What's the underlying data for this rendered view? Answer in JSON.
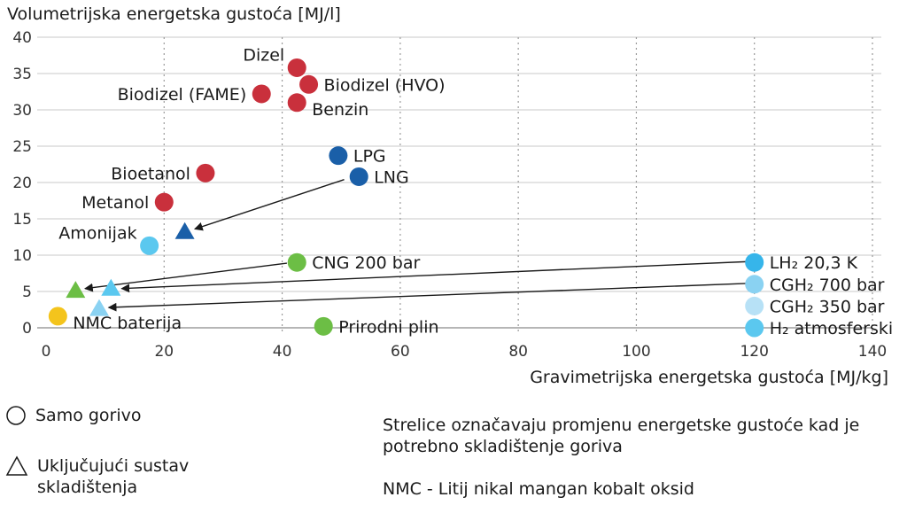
{
  "chart_data": {
    "type": "scatter",
    "title": "",
    "ylabel": "Volumetrijska energetska gustoća [MJ/l]",
    "xlabel": "Gravimetrijska energetska gustoća [MJ/kg]",
    "xlim": [
      0,
      140
    ],
    "ylim": [
      0,
      40
    ],
    "x_ticks": [
      0,
      20,
      40,
      60,
      80,
      100,
      120,
      140
    ],
    "y_ticks": [
      0,
      5,
      10,
      15,
      20,
      25,
      30,
      35,
      40
    ],
    "grid": true,
    "points": [
      {
        "label": "Dizel",
        "x": 42.5,
        "y": 35.8,
        "shape": "circle",
        "color": "#c9303c",
        "label_pos": "left-up"
      },
      {
        "label": "Biodizel (HVO)",
        "x": 44.5,
        "y": 33.5,
        "shape": "circle",
        "color": "#c9303c",
        "label_pos": "right"
      },
      {
        "label": "Biodizel (FAME)",
        "x": 36.5,
        "y": 32.2,
        "shape": "circle",
        "color": "#c9303c",
        "label_pos": "left"
      },
      {
        "label": "Benzin",
        "x": 42.5,
        "y": 31.0,
        "shape": "circle",
        "color": "#c9303c",
        "label_pos": "right-down"
      },
      {
        "label": "LPG",
        "x": 49.5,
        "y": 23.7,
        "shape": "circle",
        "color": "#1a5fa8",
        "label_pos": "right"
      },
      {
        "label": "Bioetanol",
        "x": 27.0,
        "y": 21.3,
        "shape": "circle",
        "color": "#c9303c",
        "label_pos": "left"
      },
      {
        "label": "LNG",
        "x": 53.0,
        "y": 20.8,
        "shape": "circle",
        "color": "#1a5fa8",
        "label_pos": "right"
      },
      {
        "label": "Metanol",
        "x": 20.0,
        "y": 17.3,
        "shape": "circle",
        "color": "#c9303c",
        "label_pos": "left"
      },
      {
        "label": "",
        "x": 23.5,
        "y": 13.2,
        "shape": "triangle",
        "color": "#1a5fa8",
        "label_pos": "none"
      },
      {
        "label": "Amonijak",
        "x": 17.5,
        "y": 11.3,
        "shape": "circle",
        "color": "#5bc8ef",
        "label_pos": "left-up"
      },
      {
        "label": "CNG 200 bar",
        "x": 42.5,
        "y": 9.0,
        "shape": "circle",
        "color": "#6cbe45",
        "label_pos": "right"
      },
      {
        "label": "LH₂ 20,3 K",
        "x": 120.0,
        "y": 9.0,
        "shape": "circle",
        "color": "#36b5ea",
        "label_pos": "right"
      },
      {
        "label": "CGH₂ 700 bar",
        "x": 120.0,
        "y": 6.0,
        "shape": "circle",
        "color": "#8ad2f2",
        "label_pos": "right"
      },
      {
        "label": "",
        "x": 5.0,
        "y": 5.1,
        "shape": "triangle",
        "color": "#6cbe45",
        "label_pos": "none"
      },
      {
        "label": "",
        "x": 11.0,
        "y": 5.4,
        "shape": "triangle",
        "color": "#5bc8ef",
        "label_pos": "none"
      },
      {
        "label": "CGH₂ 350 bar",
        "x": 120.0,
        "y": 3.0,
        "shape": "circle",
        "color": "#b7e1f6",
        "label_pos": "right"
      },
      {
        "label": "",
        "x": 9.0,
        "y": 2.6,
        "shape": "triangle",
        "color": "#8ad2f2",
        "label_pos": "none"
      },
      {
        "label": "NMC baterija",
        "x": 2.0,
        "y": 1.6,
        "shape": "circle",
        "color": "#f4c41c",
        "label_pos": "right-down"
      },
      {
        "label": "Prirodni plin",
        "x": 47.0,
        "y": 0.2,
        "shape": "circle",
        "color": "#6cbe45",
        "label_pos": "right"
      },
      {
        "label": "H₂ atmosferski",
        "x": 120.0,
        "y": 0.0,
        "shape": "circle",
        "color": "#5bc8ef",
        "label_pos": "right"
      }
    ],
    "arrows": [
      {
        "from": [
          50.5,
          20.4
        ],
        "to": [
          25.2,
          13.6
        ]
      },
      {
        "from": [
          40.8,
          8.9
        ],
        "to": [
          6.6,
          5.4
        ]
      },
      {
        "from": [
          118.6,
          9.1
        ],
        "to": [
          12.8,
          5.4
        ]
      },
      {
        "from": [
          118.6,
          6.1
        ],
        "to": [
          10.6,
          2.8
        ]
      }
    ]
  },
  "legend": {
    "circle_label": "Samo gorivo",
    "triangle_label": "Uključujući sustav\nskladištenja"
  },
  "notes": {
    "arrows_note": "Strelice označavaju promjenu energetske gustoće kad je\npotrebno skladištenje goriva",
    "nmc_note": "NMC - Litij nikal mangan kobalt oksid"
  }
}
